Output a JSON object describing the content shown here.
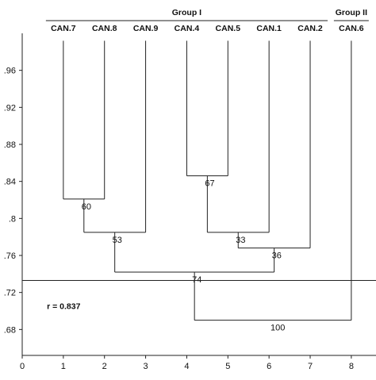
{
  "chart_data": {
    "type": "dendrogram",
    "groups": [
      {
        "name": "Group I",
        "members": [
          "CAN.7",
          "CAN.8",
          "CAN.9",
          "CAN.4",
          "CAN.5",
          "CAN.1",
          "CAN.2"
        ]
      },
      {
        "name": "Group II",
        "members": [
          "CAN.6"
        ]
      }
    ],
    "leaves": [
      "CAN.7",
      "CAN.8",
      "CAN.9",
      "CAN.4",
      "CAN.5",
      "CAN.1",
      "CAN.2",
      "CAN.6"
    ],
    "x_ticks": [
      0,
      1,
      2,
      3,
      4,
      5,
      6,
      7,
      8
    ],
    "x_tick_labels": [
      "0",
      "1",
      "2",
      "3",
      "4",
      "5",
      "6",
      "7",
      "8"
    ],
    "y_ticks": [
      0.96,
      0.92,
      0.88,
      0.84,
      0.8,
      0.76,
      0.72,
      0.68
    ],
    "y_tick_labels": [
      ".96",
      ".92",
      ".88",
      ".84",
      ".8",
      ".76",
      ".72",
      ".68"
    ],
    "xlim": [
      0,
      8.6
    ],
    "ylim": [
      0.652,
      1.0
    ],
    "leaf_top": 0.992,
    "merges": [
      {
        "id": "m1",
        "left": {
          "leaf": 0
        },
        "right": {
          "leaf": 1
        },
        "height": 0.821,
        "support": "60"
      },
      {
        "id": "m2",
        "left": {
          "merge": "m1"
        },
        "right": {
          "leaf": 2
        },
        "height": 0.785,
        "support": "53"
      },
      {
        "id": "m3",
        "left": {
          "leaf": 3
        },
        "right": {
          "leaf": 4
        },
        "height": 0.846,
        "support": "67"
      },
      {
        "id": "m4",
        "left": {
          "merge": "m3"
        },
        "right": {
          "leaf": 5
        },
        "height": 0.785,
        "support": "33"
      },
      {
        "id": "m5",
        "left": {
          "merge": "m4"
        },
        "right": {
          "leaf": 6
        },
        "height": 0.768,
        "support": "36"
      },
      {
        "id": "m6",
        "left": {
          "merge": "m2"
        },
        "right": {
          "merge": "m5"
        },
        "height": 0.742,
        "support": "74"
      },
      {
        "id": "m7",
        "left": {
          "merge": "m6"
        },
        "right": {
          "leaf": 7
        },
        "height": 0.69,
        "support": "100"
      }
    ],
    "cutoff": 0.733,
    "cophenetic": "r = 0.837"
  }
}
